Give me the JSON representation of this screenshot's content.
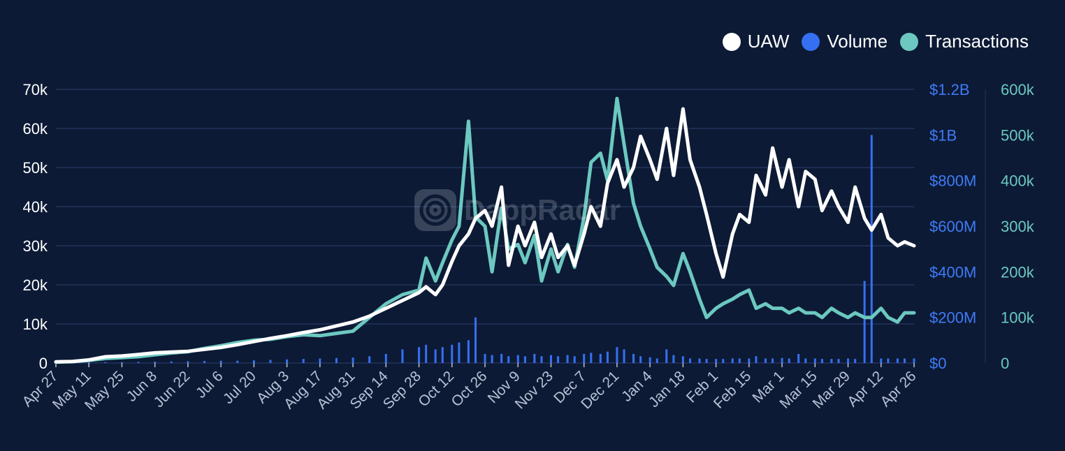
{
  "brand": {
    "watermark": "DappRadar"
  },
  "colors": {
    "background": "#0c1a35",
    "uaw": "#ffffff",
    "volume": "#3570f2",
    "transactions": "#6cc8c0",
    "grid": "#1d2d50",
    "axis_left": "#ffffff",
    "axis_mid": "#3f7bf5",
    "axis_right": "#6cc8c0",
    "tick_x": "#b8c2d6"
  },
  "chart_data": {
    "type": "line",
    "title": "",
    "x_tick_labels": [
      "Apr 27",
      "May 11",
      "May 25",
      "Jun 8",
      "Jun 22",
      "Jul 6",
      "Jul 20",
      "Aug 3",
      "Aug 17",
      "Aug 31",
      "Sep 14",
      "Sep 28",
      "Oct 12",
      "Oct 26",
      "Nov 9",
      "Nov 23",
      "Dec 7",
      "Dec 21",
      "Jan 4",
      "Jan 18",
      "Feb 1",
      "Feb 15",
      "Mar 1",
      "Mar 15",
      "Mar 29",
      "Apr 12",
      "Apr 26"
    ],
    "legend": [
      {
        "name": "UAW",
        "color": "#ffffff"
      },
      {
        "name": "Volume",
        "color": "#3570f2"
      },
      {
        "name": "Transactions",
        "color": "#6cc8c0"
      }
    ],
    "axes": {
      "left": {
        "series": "UAW",
        "range": [
          0,
          70000
        ],
        "ticks": [
          0,
          10000,
          20000,
          30000,
          40000,
          50000,
          60000,
          70000
        ],
        "tick_labels": [
          "0",
          "10k",
          "20k",
          "30k",
          "40k",
          "50k",
          "60k",
          "70k"
        ]
      },
      "mid": {
        "series": "Volume",
        "range": [
          0,
          1200000000
        ],
        "ticks": [
          0,
          200000000,
          400000000,
          600000000,
          800000000,
          1000000000,
          1200000000
        ],
        "tick_labels": [
          "$0",
          "$200M",
          "$400M",
          "$600M",
          "$800M",
          "$1B",
          "$1.2B"
        ]
      },
      "right": {
        "series": "Transactions",
        "range": [
          0,
          600000
        ],
        "ticks": [
          0,
          100000,
          200000,
          300000,
          400000,
          500000,
          600000
        ],
        "tick_labels": [
          "0",
          "100k",
          "200k",
          "300k",
          "400k",
          "500k",
          "600k"
        ]
      }
    },
    "series": [
      {
        "name": "UAW",
        "type": "line",
        "axis": "left",
        "x_day": [
          0,
          7,
          14,
          21,
          28,
          35,
          42,
          49,
          56,
          63,
          70,
          77,
          84,
          91,
          98,
          105,
          112,
          119,
          126,
          133,
          140,
          147,
          154,
          157,
          161,
          164,
          168,
          171,
          175,
          178,
          182,
          185,
          189,
          192,
          196,
          199,
          203,
          206,
          210,
          213,
          217,
          220,
          224,
          227,
          231,
          234,
          238,
          241,
          245,
          248,
          252,
          255,
          259,
          262,
          266,
          269,
          273,
          276,
          280,
          283,
          287,
          290,
          294,
          297,
          301,
          304,
          308,
          311,
          315,
          318,
          322,
          325,
          329,
          332,
          336,
          339,
          343,
          346,
          350,
          353,
          357,
          360,
          364
        ],
        "values": [
          300,
          400,
          800,
          1600,
          1800,
          2200,
          2600,
          2800,
          3000,
          3500,
          4000,
          4700,
          5500,
          6300,
          7000,
          7800,
          8500,
          9500,
          10500,
          12000,
          14000,
          16000,
          18000,
          19500,
          17500,
          20000,
          26000,
          30000,
          33000,
          37000,
          39000,
          35000,
          45000,
          25000,
          35000,
          30000,
          36000,
          27000,
          33000,
          27000,
          30000,
          25000,
          33000,
          40000,
          35000,
          46000,
          52000,
          45000,
          50000,
          58000,
          52000,
          47000,
          60000,
          48000,
          65000,
          52000,
          45000,
          38000,
          28000,
          22000,
          33000,
          38000,
          36000,
          48000,
          43000,
          55000,
          45000,
          52000,
          40000,
          49000,
          47000,
          39000,
          44000,
          40000,
          36000,
          45000,
          37000,
          34000,
          38000,
          32000,
          30000,
          31000,
          30000
        ]
      },
      {
        "name": "Transactions",
        "type": "line",
        "axis": "right",
        "x_day": [
          0,
          7,
          14,
          21,
          28,
          35,
          42,
          49,
          56,
          63,
          70,
          77,
          84,
          91,
          98,
          105,
          112,
          119,
          126,
          133,
          140,
          147,
          154,
          157,
          161,
          164,
          168,
          171,
          175,
          178,
          182,
          185,
          189,
          192,
          196,
          199,
          203,
          206,
          210,
          213,
          217,
          220,
          224,
          227,
          231,
          234,
          238,
          241,
          245,
          248,
          252,
          255,
          259,
          262,
          266,
          269,
          273,
          276,
          280,
          283,
          287,
          290,
          294,
          297,
          301,
          304,
          308,
          311,
          315,
          318,
          322,
          325,
          329,
          332,
          336,
          339,
          343,
          346,
          350,
          353,
          357,
          360,
          364
        ],
        "values": [
          2000,
          3000,
          6000,
          10000,
          12000,
          14000,
          18000,
          22000,
          25000,
          32000,
          38000,
          45000,
          50000,
          52000,
          58000,
          62000,
          60000,
          65000,
          70000,
          100000,
          130000,
          150000,
          160000,
          230000,
          180000,
          220000,
          270000,
          300000,
          530000,
          320000,
          300000,
          200000,
          340000,
          250000,
          260000,
          220000,
          280000,
          180000,
          250000,
          200000,
          260000,
          210000,
          320000,
          440000,
          460000,
          400000,
          580000,
          480000,
          350000,
          300000,
          250000,
          210000,
          190000,
          170000,
          240000,
          200000,
          140000,
          100000,
          120000,
          130000,
          140000,
          150000,
          160000,
          120000,
          130000,
          120000,
          120000,
          110000,
          120000,
          110000,
          110000,
          100000,
          120000,
          110000,
          100000,
          110000,
          100000,
          100000,
          120000,
          100000,
          90000,
          110000,
          110000
        ]
      },
      {
        "name": "Volume",
        "type": "bar",
        "axis": "mid",
        "x_day": [
          0,
          7,
          14,
          21,
          28,
          35,
          42,
          49,
          56,
          63,
          70,
          77,
          84,
          91,
          98,
          105,
          112,
          119,
          126,
          133,
          140,
          147,
          154,
          157,
          161,
          164,
          168,
          171,
          175,
          178,
          182,
          185,
          189,
          192,
          196,
          199,
          203,
          206,
          210,
          213,
          217,
          220,
          224,
          227,
          231,
          234,
          238,
          241,
          245,
          248,
          252,
          255,
          259,
          262,
          266,
          269,
          273,
          276,
          280,
          283,
          287,
          290,
          294,
          297,
          301,
          304,
          308,
          311,
          315,
          318,
          322,
          325,
          329,
          332,
          336,
          339,
          343,
          346,
          350,
          353,
          357,
          360,
          364
        ],
        "values": [
          2000000,
          2000000,
          3000000,
          4000000,
          4000000,
          5000000,
          6000000,
          7000000,
          8000000,
          9000000,
          10000000,
          10000000,
          12000000,
          14000000,
          16000000,
          18000000,
          20000000,
          22000000,
          24000000,
          30000000,
          40000000,
          60000000,
          70000000,
          80000000,
          60000000,
          70000000,
          80000000,
          90000000,
          100000000,
          200000000,
          40000000,
          35000000,
          40000000,
          30000000,
          35000000,
          30000000,
          40000000,
          30000000,
          35000000,
          30000000,
          35000000,
          30000000,
          40000000,
          45000000,
          40000000,
          50000000,
          70000000,
          60000000,
          40000000,
          30000000,
          25000000,
          20000000,
          60000000,
          35000000,
          30000000,
          20000000,
          20000000,
          18000000,
          18000000,
          18000000,
          20000000,
          20000000,
          20000000,
          30000000,
          20000000,
          20000000,
          22000000,
          20000000,
          40000000,
          20000000,
          20000000,
          18000000,
          18000000,
          18000000,
          20000000,
          18000000,
          360000000,
          1000000000,
          20000000,
          20000000,
          20000000,
          20000000,
          20000000
        ]
      }
    ]
  }
}
